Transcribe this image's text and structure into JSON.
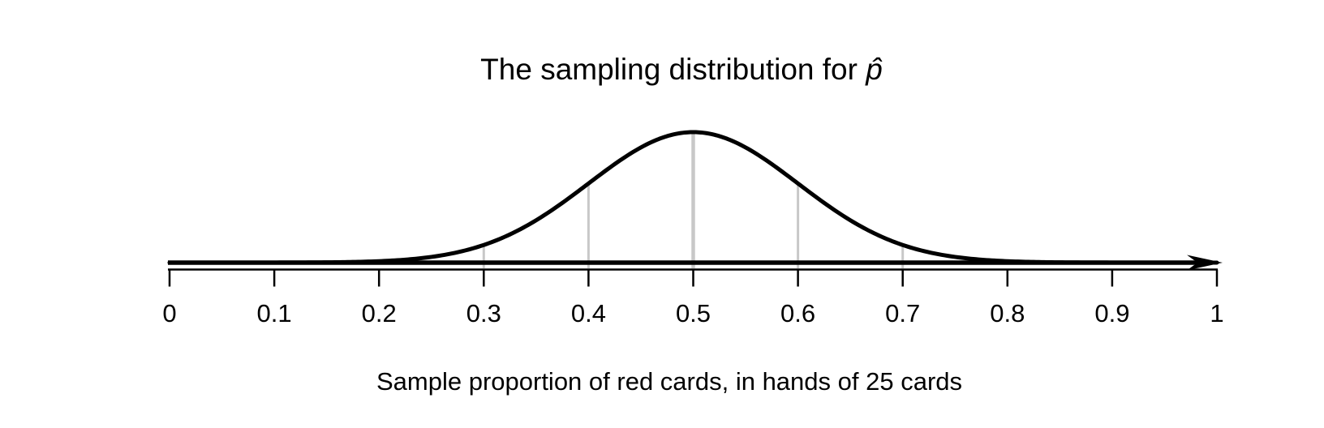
{
  "chart_data": {
    "type": "line",
    "title": "The sampling distribution for p̂",
    "title_plain": "The sampling distribution for ",
    "title_symbol": "p̂",
    "xlabel": "Sample proportion of red cards, in hands of 25 cards",
    "distribution": {
      "shape": "normal",
      "mean": 0.5,
      "sd": 0.1
    },
    "xlim": [
      0,
      1
    ],
    "x_ticks": [
      0,
      0.1,
      0.2,
      0.3,
      0.4,
      0.5,
      0.6,
      0.7,
      0.8,
      0.9,
      1
    ],
    "x_tick_labels": [
      "0",
      "0.1",
      "0.2",
      "0.3",
      "0.4",
      "0.5",
      "0.6",
      "0.7",
      "0.8",
      "0.9",
      "1"
    ],
    "guide_lines_x": [
      0.3,
      0.4,
      0.5,
      0.6,
      0.7
    ],
    "guide_line_heights_rel": [
      0.1353,
      0.6065,
      1.0,
      0.6065,
      0.1353
    ],
    "axis_arrow": "right",
    "grid": false,
    "legend": "none",
    "colors": {
      "curve": "#000000",
      "baseline": "#000000",
      "axis": "#000000",
      "guide": "#c8c8c8",
      "text": "#000000",
      "background": "#ffffff"
    }
  }
}
